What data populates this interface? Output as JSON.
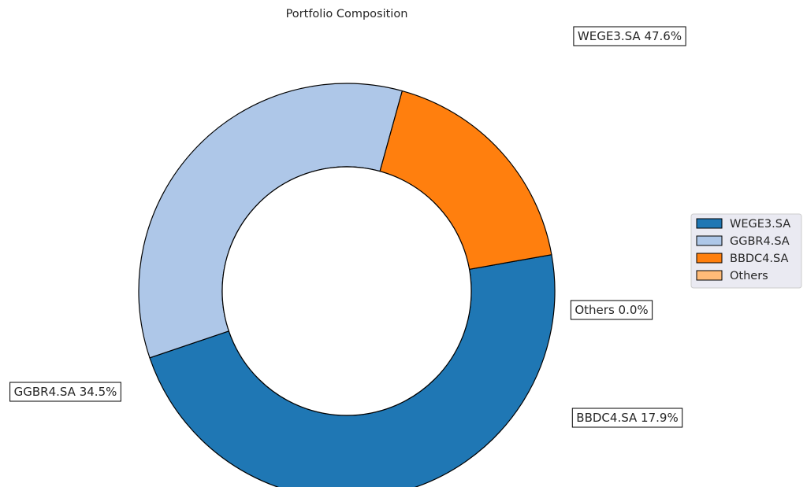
{
  "chart_data": {
    "type": "pie",
    "title": "Portfolio Composition",
    "donut": true,
    "start_angle_deg": 10.1,
    "direction": "clockwise",
    "slices": [
      {
        "name": "WEGE3.SA",
        "value": 47.6,
        "label": "WEGE3.SA 47.6%",
        "color": "#1f77b4"
      },
      {
        "name": "GGBR4.SA",
        "value": 34.5,
        "label": "GGBR4.SA 34.5%",
        "color": "#aec7e8"
      },
      {
        "name": "BBDC4.SA",
        "value": 17.9,
        "label": "BBDC4.SA 17.9%",
        "color": "#ff7f0e"
      },
      {
        "name": "Others",
        "value": 0.0,
        "label": "Others 0.0%",
        "color": "#ffbb78"
      }
    ],
    "legend": {
      "placement": "center-right",
      "entries": [
        "WEGE3.SA",
        "GGBR4.SA",
        "BBDC4.SA",
        "Others"
      ]
    }
  }
}
